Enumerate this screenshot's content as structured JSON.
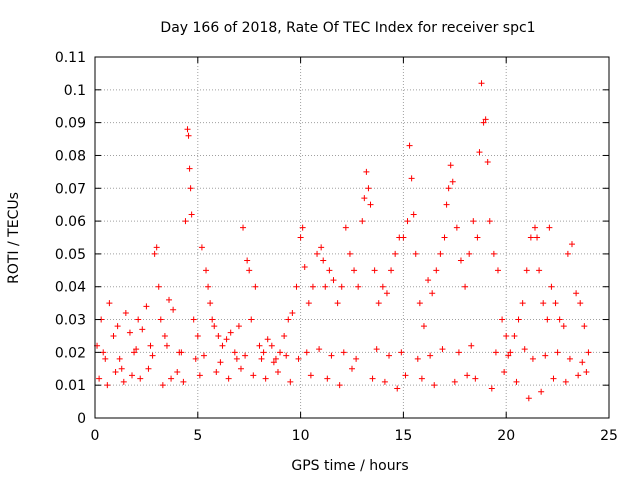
{
  "chart_data": {
    "type": "scatter",
    "title": "Day 166 of 2018, Rate Of TEC Index for receiver spc1",
    "xlabel": "GPS time / hours",
    "ylabel": "ROTI / TECUs",
    "xlim": [
      0,
      25
    ],
    "ylim": [
      0,
      0.11
    ],
    "x_ticks": [
      "0",
      "5",
      "10",
      "15",
      "20",
      "25"
    ],
    "y_ticks": [
      "0",
      "0.01",
      "0.02",
      "0.03",
      "0.04",
      "0.05",
      "0.06",
      "0.07",
      "0.08",
      "0.09",
      "0.1",
      "0.11"
    ],
    "grid": true,
    "marker": "+",
    "colors": {
      "series": "#ff0000",
      "axes": "#000000",
      "grid": "#a0a0a0"
    },
    "series": [
      {
        "name": "ROTI",
        "x": [
          0.1,
          0.3,
          0.5,
          0.7,
          0.9,
          1.1,
          1.3,
          1.5,
          1.7,
          1.9,
          2.1,
          2.3,
          2.5,
          2.7,
          2.9,
          3.0,
          3.1,
          3.2,
          3.4,
          3.6,
          3.8,
          4.0,
          4.2,
          4.4,
          4.5,
          4.55,
          4.6,
          4.65,
          4.7,
          4.8,
          5.0,
          5.2,
          5.4,
          5.5,
          5.6,
          5.7,
          5.8,
          6.0,
          6.2,
          6.4,
          6.6,
          6.8,
          7.0,
          7.2,
          7.4,
          7.5,
          7.6,
          7.8,
          8.0,
          8.2,
          8.4,
          8.6,
          8.8,
          9.0,
          9.2,
          9.4,
          9.6,
          9.8,
          10.0,
          10.1,
          10.2,
          10.4,
          10.6,
          10.8,
          11.0,
          11.1,
          11.2,
          11.4,
          11.6,
          11.8,
          12.0,
          12.2,
          12.4,
          12.6,
          12.8,
          13.0,
          13.1,
          13.2,
          13.3,
          13.4,
          13.6,
          13.8,
          14.0,
          14.2,
          14.4,
          14.6,
          14.8,
          15.0,
          15.2,
          15.3,
          15.4,
          15.5,
          15.6,
          15.8,
          16.0,
          16.2,
          16.4,
          16.6,
          16.8,
          17.0,
          17.1,
          17.2,
          17.3,
          17.4,
          17.6,
          17.8,
          18.0,
          18.2,
          18.4,
          18.6,
          18.7,
          18.8,
          18.9,
          19.0,
          19.1,
          19.2,
          19.4,
          19.6,
          19.8,
          20.0,
          20.2,
          20.4,
          20.6,
          20.8,
          21.0,
          21.2,
          21.4,
          21.5,
          21.6,
          21.8,
          22.0,
          22.1,
          22.2,
          22.4,
          22.6,
          22.8,
          23.0,
          23.2,
          23.4,
          23.6,
          23.8,
          24.0,
          0.2,
          0.6,
          1.0,
          1.4,
          1.8,
          2.2,
          2.6,
          3.3,
          3.7,
          4.3,
          5.1,
          5.9,
          6.5,
          7.1,
          7.7,
          8.3,
          8.9,
          9.5,
          10.5,
          11.3,
          11.9,
          12.5,
          13.5,
          14.1,
          14.7,
          15.1,
          15.9,
          16.5,
          17.5,
          18.1,
          18.5,
          19.3,
          19.9,
          20.5,
          21.1,
          21.7,
          22.3,
          22.9,
          23.5,
          23.9,
          0.4,
          1.2,
          2.0,
          2.8,
          3.5,
          4.1,
          4.9,
          5.3,
          6.1,
          6.9,
          7.3,
          8.1,
          8.7,
          9.3,
          9.9,
          10.3,
          10.9,
          11.5,
          12.1,
          12.7,
          13.7,
          14.3,
          14.9,
          15.7,
          16.3,
          16.9,
          17.7,
          18.3,
          19.5,
          20.1,
          20.9,
          21.3,
          21.9,
          22.5,
          23.1,
          23.7
        ],
        "y": [
          0.022,
          0.03,
          0.018,
          0.035,
          0.025,
          0.028,
          0.015,
          0.032,
          0.026,
          0.02,
          0.03,
          0.027,
          0.034,
          0.022,
          0.05,
          0.052,
          0.04,
          0.03,
          0.025,
          0.036,
          0.033,
          0.014,
          0.02,
          0.06,
          0.088,
          0.086,
          0.076,
          0.07,
          0.062,
          0.03,
          0.025,
          0.052,
          0.045,
          0.04,
          0.035,
          0.03,
          0.028,
          0.025,
          0.022,
          0.024,
          0.026,
          0.02,
          0.028,
          0.058,
          0.048,
          0.045,
          0.03,
          0.04,
          0.022,
          0.02,
          0.024,
          0.022,
          0.018,
          0.02,
          0.025,
          0.03,
          0.032,
          0.04,
          0.055,
          0.058,
          0.046,
          0.035,
          0.04,
          0.05,
          0.052,
          0.048,
          0.04,
          0.045,
          0.042,
          0.035,
          0.04,
          0.058,
          0.05,
          0.045,
          0.04,
          0.06,
          0.067,
          0.075,
          0.07,
          0.065,
          0.045,
          0.035,
          0.04,
          0.038,
          0.045,
          0.05,
          0.055,
          0.055,
          0.06,
          0.083,
          0.073,
          0.062,
          0.05,
          0.035,
          0.028,
          0.042,
          0.038,
          0.045,
          0.05,
          0.055,
          0.065,
          0.07,
          0.077,
          0.072,
          0.058,
          0.048,
          0.04,
          0.05,
          0.06,
          0.055,
          0.081,
          0.102,
          0.09,
          0.091,
          0.078,
          0.06,
          0.05,
          0.045,
          0.03,
          0.025,
          0.02,
          0.025,
          0.03,
          0.035,
          0.045,
          0.055,
          0.058,
          0.055,
          0.045,
          0.035,
          0.03,
          0.058,
          0.04,
          0.035,
          0.03,
          0.028,
          0.05,
          0.053,
          0.038,
          0.035,
          0.028,
          0.02,
          0.012,
          0.01,
          0.014,
          0.011,
          0.013,
          0.012,
          0.015,
          0.01,
          0.012,
          0.011,
          0.013,
          0.014,
          0.012,
          0.015,
          0.013,
          0.012,
          0.014,
          0.011,
          0.013,
          0.012,
          0.01,
          0.015,
          0.012,
          0.011,
          0.009,
          0.013,
          0.012,
          0.01,
          0.011,
          0.013,
          0.012,
          0.009,
          0.014,
          0.011,
          0.006,
          0.008,
          0.012,
          0.011,
          0.013,
          0.014,
          0.02,
          0.018,
          0.021,
          0.019,
          0.022,
          0.02,
          0.018,
          0.019,
          0.017,
          0.018,
          0.019,
          0.018,
          0.017,
          0.019,
          0.018,
          0.02,
          0.021,
          0.019,
          0.02,
          0.018,
          0.021,
          0.019,
          0.02,
          0.018,
          0.019,
          0.021,
          0.02,
          0.022,
          0.02,
          0.019,
          0.021,
          0.018,
          0.019,
          0.02,
          0.018,
          0.017
        ]
      }
    ]
  }
}
